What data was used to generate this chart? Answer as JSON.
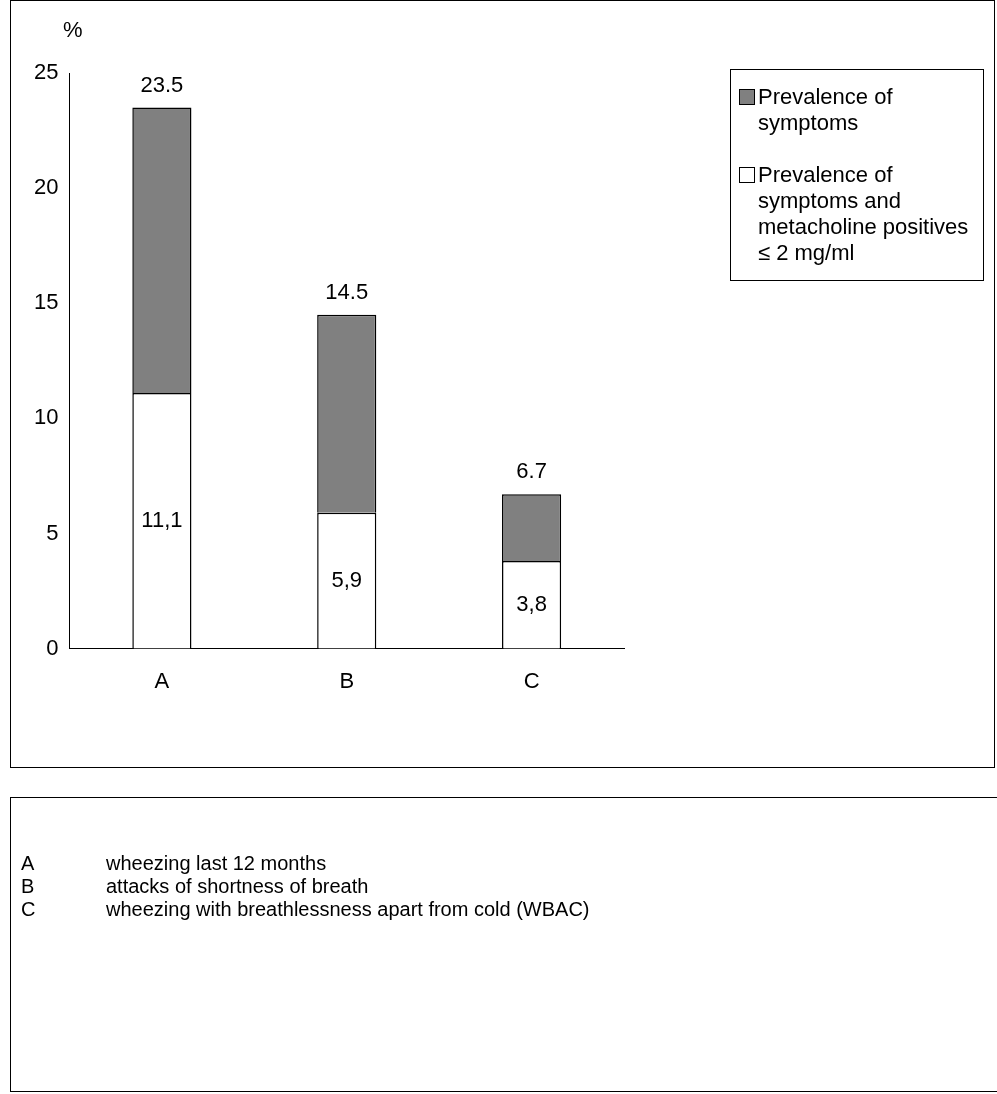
{
  "chart_data": {
    "type": "bar",
    "stacked": true,
    "categories": [
      "A",
      "B",
      "C"
    ],
    "series": [
      {
        "name": "Prevalence of symptoms and metacholine positives ≤ 2 mg/ml",
        "color": "#ffffff",
        "values": [
          11.1,
          5.9,
          3.8
        ],
        "value_labels": [
          "11,1",
          "5,9",
          "3,8"
        ]
      },
      {
        "name": "Prevalence of symptoms",
        "color": "#808080",
        "values": [
          12.4,
          8.6,
          2.9
        ]
      }
    ],
    "totals": [
      "23.5",
      "14.5",
      "6.7"
    ],
    "ylabel": "%",
    "ylim": [
      0,
      25
    ],
    "yticks": [
      0,
      5,
      10,
      15,
      20,
      25
    ],
    "grid": false,
    "legend": "top right",
    "annotations": [
      "A\twheezing last 12 months",
      "B\tattacks of shortness of breath",
      "C\twheezing with breathlessness apart from cold (WBAC)"
    ]
  }
}
